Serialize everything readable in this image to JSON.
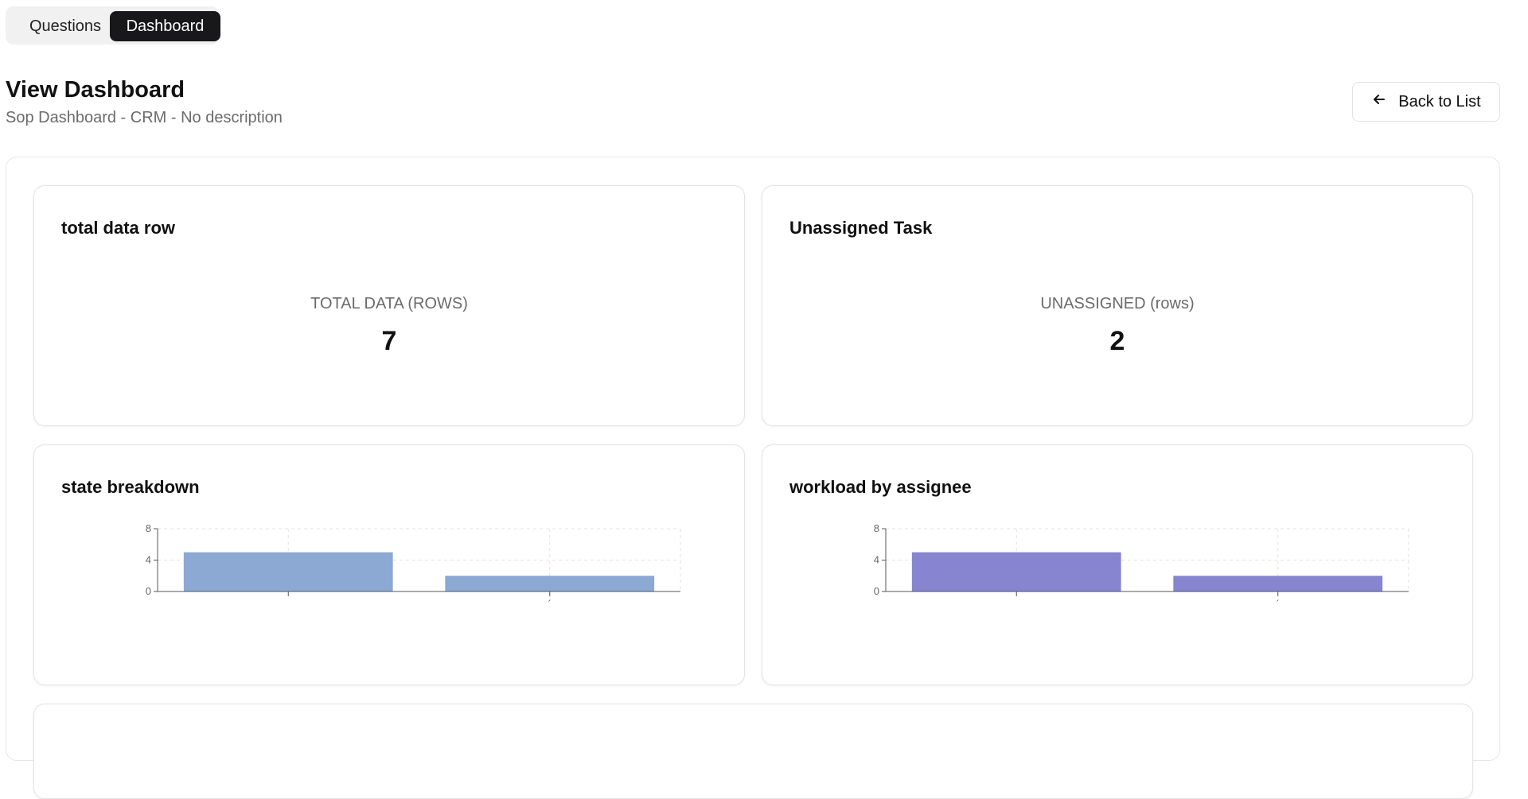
{
  "tabs": {
    "questions_label": "Questions",
    "dashboard_label": "Dashboard"
  },
  "header": {
    "title": "View Dashboard",
    "subtitle": "Sop Dashboard - CRM - No description",
    "back_label": "Back to List"
  },
  "cards": {
    "total": {
      "title": "total data row",
      "label": "TOTAL DATA (ROWS)",
      "value": "7"
    },
    "unassigned": {
      "title": "Unassigned Task",
      "label": "UNASSIGNED (rows)",
      "value": "2"
    },
    "state": {
      "title": "state breakdown"
    },
    "workload": {
      "title": "workload by assignee"
    }
  },
  "colors": {
    "tab_active_bg": "#18181b",
    "state_bar": "#8ca9d3",
    "workload_bar": "#8785d0"
  },
  "chart_data": [
    {
      "type": "bar",
      "title": "state breakdown",
      "categories": [
        "",
        "´"
      ],
      "values": [
        5,
        2
      ],
      "ylim": [
        0,
        8
      ],
      "yticks": [
        0,
        4,
        8
      ],
      "color": "#8ca9d3",
      "grid": true
    },
    {
      "type": "bar",
      "title": "workload by assignee",
      "categories": [
        "",
        "´"
      ],
      "values": [
        5,
        2
      ],
      "ylim": [
        0,
        8
      ],
      "yticks": [
        0,
        4,
        8
      ],
      "color": "#8785d0",
      "grid": true
    }
  ]
}
